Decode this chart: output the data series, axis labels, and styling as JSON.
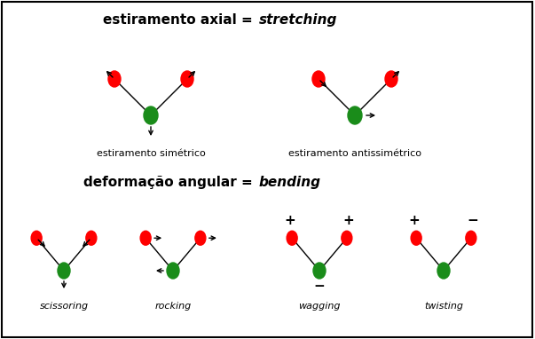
{
  "title_stretching_bold": "estiramento axial = ",
  "title_stretching_italic": "stretching",
  "title_bending_bold": "deformação angular = ",
  "title_bending_italic": "bending",
  "label_sym": "estiramento simétrico",
  "label_antisym": "estiramento antissimétrico",
  "label_scissoring": "scissoring",
  "label_rocking": "rocking",
  "label_wagging": "wagging",
  "label_twisting": "twisting",
  "red_color": "#FF0000",
  "green_color": "#1A8C1A",
  "bg_color": "#FFFFFF",
  "border_color": "#000000",
  "text_color": "#000000",
  "fig_width": 6.03,
  "fig_height": 3.82,
  "dpi": 100
}
